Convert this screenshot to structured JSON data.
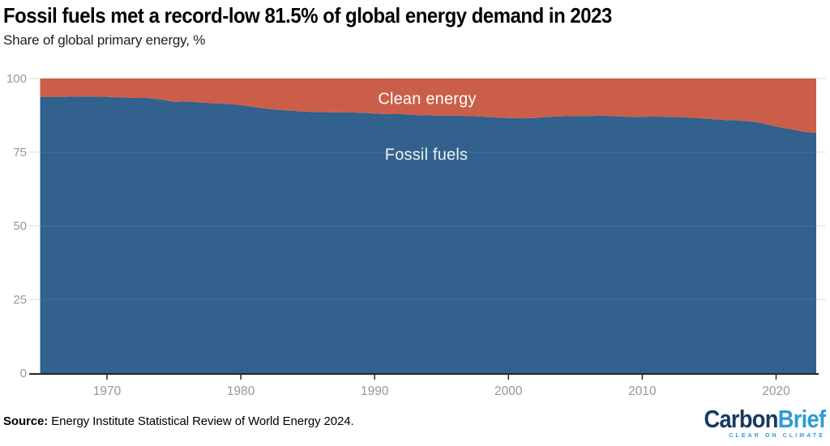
{
  "header": {
    "title": "Fossil fuels met a record-low 81.5% of global energy demand in 2023",
    "subtitle": "Share of global primary energy, %"
  },
  "chart_data": {
    "type": "area",
    "stacked": true,
    "title": "Fossil fuels met a record-low 81.5% of global energy demand in 2023",
    "ylabel": "Share of global primary energy, %",
    "xlabel": "",
    "xlim": [
      1965,
      2023
    ],
    "ylim": [
      0,
      100
    ],
    "xticks": [
      1970,
      1980,
      1990,
      2000,
      2010,
      2020
    ],
    "yticks": [
      0,
      25,
      50,
      75,
      100
    ],
    "grid": "horizontal-subtle",
    "legend_position": "labels-inside-areas",
    "x": [
      1965,
      1966,
      1967,
      1968,
      1969,
      1970,
      1971,
      1972,
      1973,
      1974,
      1975,
      1976,
      1977,
      1978,
      1979,
      1980,
      1981,
      1982,
      1983,
      1984,
      1985,
      1986,
      1987,
      1988,
      1989,
      1990,
      1991,
      1992,
      1993,
      1994,
      1995,
      1996,
      1997,
      1998,
      1999,
      2000,
      2001,
      2002,
      2003,
      2004,
      2005,
      2006,
      2007,
      2008,
      2009,
      2010,
      2011,
      2012,
      2013,
      2014,
      2015,
      2016,
      2017,
      2018,
      2019,
      2020,
      2021,
      2022,
      2023
    ],
    "series": [
      {
        "name": "Fossil fuels",
        "color": "#31618C",
        "values": [
          93.8,
          93.8,
          93.8,
          93.9,
          93.9,
          93.8,
          93.6,
          93.4,
          93.4,
          92.9,
          92.1,
          92.2,
          91.9,
          91.6,
          91.4,
          91.0,
          90.3,
          89.7,
          89.3,
          89.0,
          88.7,
          88.6,
          88.5,
          88.5,
          88.4,
          88.1,
          87.9,
          87.9,
          87.6,
          87.5,
          87.4,
          87.4,
          87.3,
          87.1,
          86.8,
          86.6,
          86.5,
          86.6,
          87.0,
          87.2,
          87.3,
          87.3,
          87.4,
          87.2,
          87.0,
          87.0,
          87.1,
          87.0,
          86.9,
          86.6,
          86.3,
          86.0,
          85.8,
          85.5,
          84.8,
          83.7,
          82.9,
          82.0,
          81.5
        ]
      },
      {
        "name": "Clean energy",
        "color": "#CB5E49",
        "values": [
          6.2,
          6.2,
          6.2,
          6.1,
          6.1,
          6.2,
          6.4,
          6.6,
          6.6,
          7.1,
          7.9,
          7.8,
          8.1,
          8.4,
          8.6,
          9.0,
          9.7,
          10.3,
          10.7,
          11.0,
          11.3,
          11.4,
          11.5,
          11.5,
          11.6,
          11.9,
          12.1,
          12.1,
          12.4,
          12.5,
          12.6,
          12.6,
          12.7,
          12.9,
          13.2,
          13.4,
          13.5,
          13.4,
          13.0,
          12.8,
          12.7,
          12.7,
          12.6,
          12.8,
          13.0,
          13.0,
          12.9,
          13.0,
          13.1,
          13.4,
          13.7,
          14.0,
          14.2,
          14.5,
          15.2,
          16.3,
          17.1,
          18.0,
          18.5
        ]
      }
    ],
    "key_value_2023_fossil_pct": 81.5
  },
  "axis_style": {
    "tick_label_color": "#979797",
    "gridline_color": "#dcdcdc",
    "axis_line_color": "#262626"
  },
  "footer": {
    "source_label": "Source:",
    "source_text": " Energy Institute Statistical Review of World Energy 2024."
  },
  "logo": {
    "part1": "Carbon",
    "part2": "Brief",
    "tagline": "CLEAR ON CLIMATE",
    "navy": "#163A5F",
    "blue": "#2E9CD6"
  }
}
